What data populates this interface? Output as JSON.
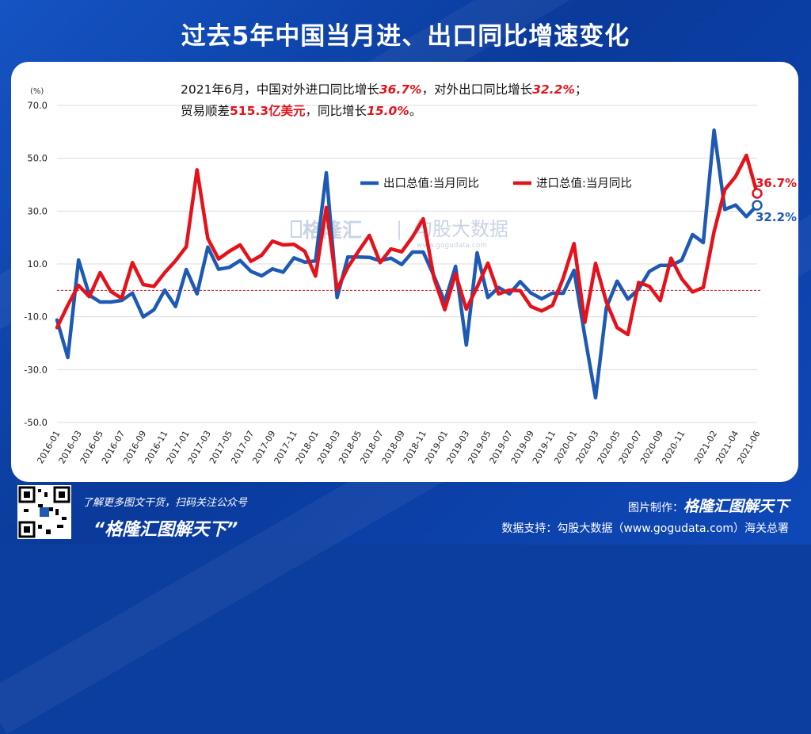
{
  "title": "过去5年中国当月进、出口同比增速变化",
  "summary": {
    "line1_a": "2021年6月，中国对外进口同比增长",
    "line1_b": "36.7%",
    "line1_c": "，对外出口同比增长",
    "line1_d": "32.2%",
    "line1_e": "；",
    "line2_a": "贸易顺差",
    "line2_b": "515.3亿美元",
    "line2_c": "，同比增长",
    "line2_d": "15.0%",
    "line2_e": "。"
  },
  "watermark": {
    "brand": "格隆汇",
    "sep": "|",
    "brand2": "勾股大数据",
    "url": "www.gogudata.com"
  },
  "footer": {
    "tip": "了解更多图文干货，扫码关注公众号",
    "brand": "“格隆汇图解天下”",
    "made_by_label": "图片制作：",
    "made_by": "格隆汇图解天下",
    "data_support": "数据支持：勾股大数据（www.gogudata.com）海关总署"
  },
  "colors": {
    "export": "#1e59b4",
    "import": "#e3121b",
    "background": "#0b3e9e",
    "accent": "#ffffff"
  },
  "chart_data": {
    "type": "line",
    "ylabel": "(%)",
    "ylim": [
      -50,
      70
    ],
    "yticks": [
      "70.0",
      "50.0",
      "30.0",
      "10.0",
      "-10.0",
      "-30.0",
      "-50.0"
    ],
    "xticks": [
      "2016-01",
      "2016-03",
      "2016-05",
      "2016-07",
      "2016-09",
      "2016-11",
      "2017-01",
      "2017-03",
      "2017-05",
      "2017-07",
      "2017-09",
      "2017-11",
      "2018-01",
      "2018-03",
      "2018-05",
      "2018-07",
      "2018-09",
      "2018-11",
      "2019-01",
      "2019-03",
      "2019-05",
      "2019-07",
      "2019-09",
      "2019-11",
      "2020-01",
      "2020-03",
      "2020-05",
      "2020-07",
      "2020-09",
      "2020-11",
      "2021-02",
      "2021-04",
      "2021-06"
    ],
    "legend_placement": "top-center",
    "reference_line": 0,
    "series": [
      {
        "name": "出口总值:当月同比",
        "color": "#1e59b4",
        "values": [
          -11.2,
          -25.4,
          11.5,
          -1.8,
          -4.4,
          -4.4,
          -3.8,
          -1.0,
          -10.0,
          -7.3,
          0.1,
          -6.1,
          7.9,
          -1.3,
          16.4,
          8.0,
          8.7,
          11.3,
          7.2,
          5.5,
          8.1,
          6.9,
          12.3,
          10.7,
          11.1,
          44.5,
          -2.7,
          12.6,
          12.6,
          12.5,
          11.2,
          12.2,
          9.8,
          14.5,
          14.5,
          5.4,
          -4.4,
          9.1,
          -20.7,
          14.2,
          -2.7,
          1.1,
          -1.3,
          3.3,
          -1.0,
          -3.2,
          -1.0,
          -1.1,
          7.6,
          -17.2,
          -40.6,
          -6.6,
          3.5,
          -3.3,
          0.5,
          7.2,
          9.5,
          9.5,
          11.4,
          21.1,
          18.1,
          60.6,
          30.6,
          32.3,
          27.9,
          32.2
        ]
      },
      {
        "name": "进口总值:当月同比",
        "color": "#e3121b",
        "values": [
          -14.1,
          -5.6,
          1.9,
          -2.4,
          6.7,
          -0.4,
          -3.0,
          10.5,
          2.2,
          1.5,
          6.7,
          11.2,
          16.5,
          45.6,
          19.6,
          11.9,
          14.8,
          17.2,
          11.0,
          13.3,
          18.6,
          17.2,
          17.4,
          14.8,
          5.4,
          31.4,
          0.3,
          8.7,
          14.9,
          20.8,
          10.5,
          15.7,
          14.6,
          20.2,
          27.1,
          4.6,
          -7.3,
          6.3,
          -7.1,
          1.2,
          10.3,
          -1.3,
          0.1,
          -0.1,
          -6.1,
          -7.8,
          -5.7,
          4.7,
          17.7,
          -12.1,
          10.2,
          -4.4,
          -14.1,
          -16.7,
          3.0,
          1.5,
          -3.9,
          12.2,
          4.4,
          -0.6,
          1.1,
          22.2,
          38.1,
          43.1,
          51.1,
          36.7
        ]
      }
    ],
    "end_labels": {
      "import": "36.7%",
      "export": "32.2%"
    }
  }
}
